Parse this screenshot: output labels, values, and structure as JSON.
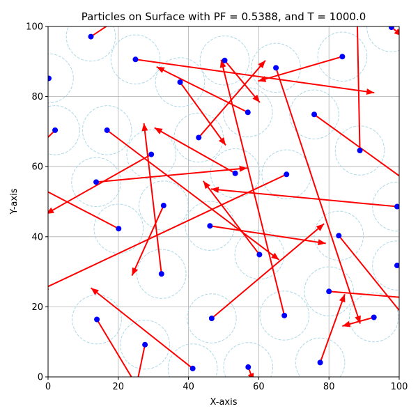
{
  "chart_data": {
    "type": "scatter",
    "title": "Particles on Surface with PF = 0.5388, and T = 1000.0",
    "xlabel": "X-axis",
    "ylabel": "Y-axis",
    "xlim": [
      0,
      100
    ],
    "ylim": [
      0,
      100
    ],
    "grid": true,
    "xticks": [
      0,
      20,
      40,
      60,
      80,
      100
    ],
    "yticks": [
      0,
      20,
      40,
      60,
      80,
      100
    ],
    "particle_radius": 7,
    "colors": {
      "particle": "#0000ff",
      "circle": "#add8e6",
      "arrow": "#ff0000",
      "grid": "#b0b0b0"
    },
    "particles": [
      {
        "x": 12.2,
        "y": 97.1,
        "dx": 9.0,
        "dy": 6.0
      },
      {
        "x": 24.9,
        "y": 90.6,
        "dx": 68.0,
        "dy": -9.5
      },
      {
        "x": 50.3,
        "y": 90.3,
        "dx": 10.0,
        "dy": -12.0
      },
      {
        "x": 64.9,
        "y": 88.2,
        "dx": 24.0,
        "dy": -73.0
      },
      {
        "x": 83.8,
        "y": 91.4,
        "dx": -24.0,
        "dy": -7.0
      },
      {
        "x": 97.8,
        "y": 99.8,
        "dx": 3.0,
        "dy": -2.5
      },
      {
        "x": 0.2,
        "y": 85.2,
        "dx": 0,
        "dy": 0
      },
      {
        "x": 37.6,
        "y": 84.1,
        "dx": 13.0,
        "dy": -18.0
      },
      {
        "x": 56.9,
        "y": 75.5,
        "dx": -26.0,
        "dy": 13.0
      },
      {
        "x": 75.8,
        "y": 74.9,
        "dx": 29.0,
        "dy": -21.0
      },
      {
        "x": 2.0,
        "y": 70.4,
        "dx": -6.0,
        "dy": -6.0
      },
      {
        "x": 16.8,
        "y": 70.4,
        "dx": 49.0,
        "dy": -37.0
      },
      {
        "x": 42.9,
        "y": 68.3,
        "dx": 19.0,
        "dy": 22.0
      },
      {
        "x": 88.8,
        "y": 64.6,
        "dx": -1.0,
        "dy": 50.0
      },
      {
        "x": 29.4,
        "y": 63.5,
        "dx": -30.0,
        "dy": -17.0
      },
      {
        "x": 53.3,
        "y": 58.1,
        "dx": -23.0,
        "dy": 13.0
      },
      {
        "x": 67.9,
        "y": 57.8,
        "dx": -70.0,
        "dy": -33.0
      },
      {
        "x": 13.7,
        "y": 55.6,
        "dx": 43.0,
        "dy": 4.0
      },
      {
        "x": 32.9,
        "y": 48.9,
        "dx": -9.0,
        "dy": -20.0
      },
      {
        "x": 99.4,
        "y": 48.6,
        "dx": -53.0,
        "dy": 5.0
      },
      {
        "x": 46.1,
        "y": 43.1,
        "dx": 33.0,
        "dy": -5.0
      },
      {
        "x": 20.1,
        "y": 42.3,
        "dx": -23.0,
        "dy": 12.0
      },
      {
        "x": 82.8,
        "y": 40.3,
        "dx": 21.0,
        "dy": -26.0
      },
      {
        "x": 60.2,
        "y": 34.9,
        "dx": -16.0,
        "dy": 21.0
      },
      {
        "x": 99.4,
        "y": 31.8,
        "dx": 0,
        "dy": 0
      },
      {
        "x": 32.3,
        "y": 29.4,
        "dx": -5.0,
        "dy": 43.0
      },
      {
        "x": 80.0,
        "y": 24.4,
        "dx": 24.0,
        "dy": -2.0
      },
      {
        "x": 13.9,
        "y": 16.4,
        "dx": 12.0,
        "dy": -20.0
      },
      {
        "x": 46.6,
        "y": 16.7,
        "dx": 32.0,
        "dy": 27.0
      },
      {
        "x": 67.3,
        "y": 17.5,
        "dx": -18.0,
        "dy": 73.0
      },
      {
        "x": 92.8,
        "y": 17.0,
        "dx": -9.0,
        "dy": -2.5
      },
      {
        "x": 27.6,
        "y": 9.2,
        "dx": -2.5,
        "dy": -12.0
      },
      {
        "x": 41.2,
        "y": 2.4,
        "dx": -29.0,
        "dy": 23.0
      },
      {
        "x": 57.0,
        "y": 2.8,
        "dx": 1.5,
        "dy": -4.0
      },
      {
        "x": 77.5,
        "y": 4.1,
        "dx": 7.0,
        "dy": 19.5
      }
    ]
  }
}
